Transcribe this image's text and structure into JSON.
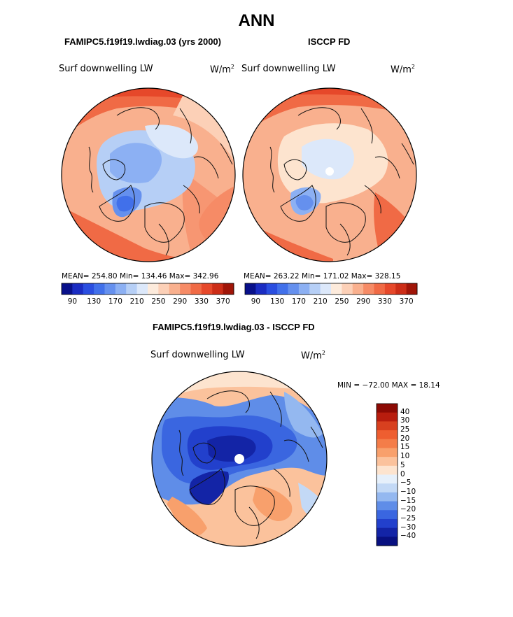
{
  "figure": {
    "title": "ANN",
    "left_panel": {
      "case": "FAMIPC5.f19f19.lwdiag.03 (yrs 2000)",
      "field": "Surf downwelling LW",
      "units": "W/m",
      "units_sup": "2",
      "stats": "MEAN= 254.80   Min= 134.46   Max= 342.96",
      "colorbar_ticks": [
        "90",
        "130",
        "170",
        "210",
        "250",
        "290",
        "330",
        "370"
      ],
      "colorbar_colors": [
        "#08108a",
        "#1a2cc2",
        "#2a4ee0",
        "#4170ea",
        "#6590ee",
        "#8cb0f3",
        "#b6cff6",
        "#dce8fa",
        "#fdebdc",
        "#fcd0b7",
        "#f9b08e",
        "#f68b66",
        "#f06a45",
        "#e6482a",
        "#cc2d17",
        "#a01508"
      ]
    },
    "right_panel": {
      "case": "ISCCP FD",
      "field": "Surf downwelling LW",
      "units": "W/m",
      "units_sup": "2",
      "stats": "MEAN= 263.22   Min= 171.02   Max= 328.15",
      "colorbar_ticks": [
        "90",
        "130",
        "170",
        "210",
        "250",
        "290",
        "330",
        "370"
      ]
    },
    "diff_panel": {
      "title": "FAMIPC5.f19f19.lwdiag.03 - ISCCP FD",
      "field": "Surf downwelling LW",
      "units": "W/m",
      "units_sup": "2",
      "minmax": "MIN = −72.00 MAX =   18.14",
      "colorbar_ticks": [
        "40",
        "30",
        "25",
        "20",
        "15",
        "10",
        "5",
        "0",
        "−5",
        "−10",
        "−15",
        "−20",
        "−25",
        "−30",
        "−40"
      ],
      "colorbar_colors": [
        "#8c0a04",
        "#b81d0e",
        "#d8401f",
        "#ee5e30",
        "#f47d49",
        "#f8a06c",
        "#fbc29c",
        "#fde4cf",
        "#e6f0fb",
        "#c3d9f6",
        "#94b8f0",
        "#5f8de8",
        "#3a66e0",
        "#2240cc",
        "#1324a6",
        "#081080"
      ]
    }
  }
}
